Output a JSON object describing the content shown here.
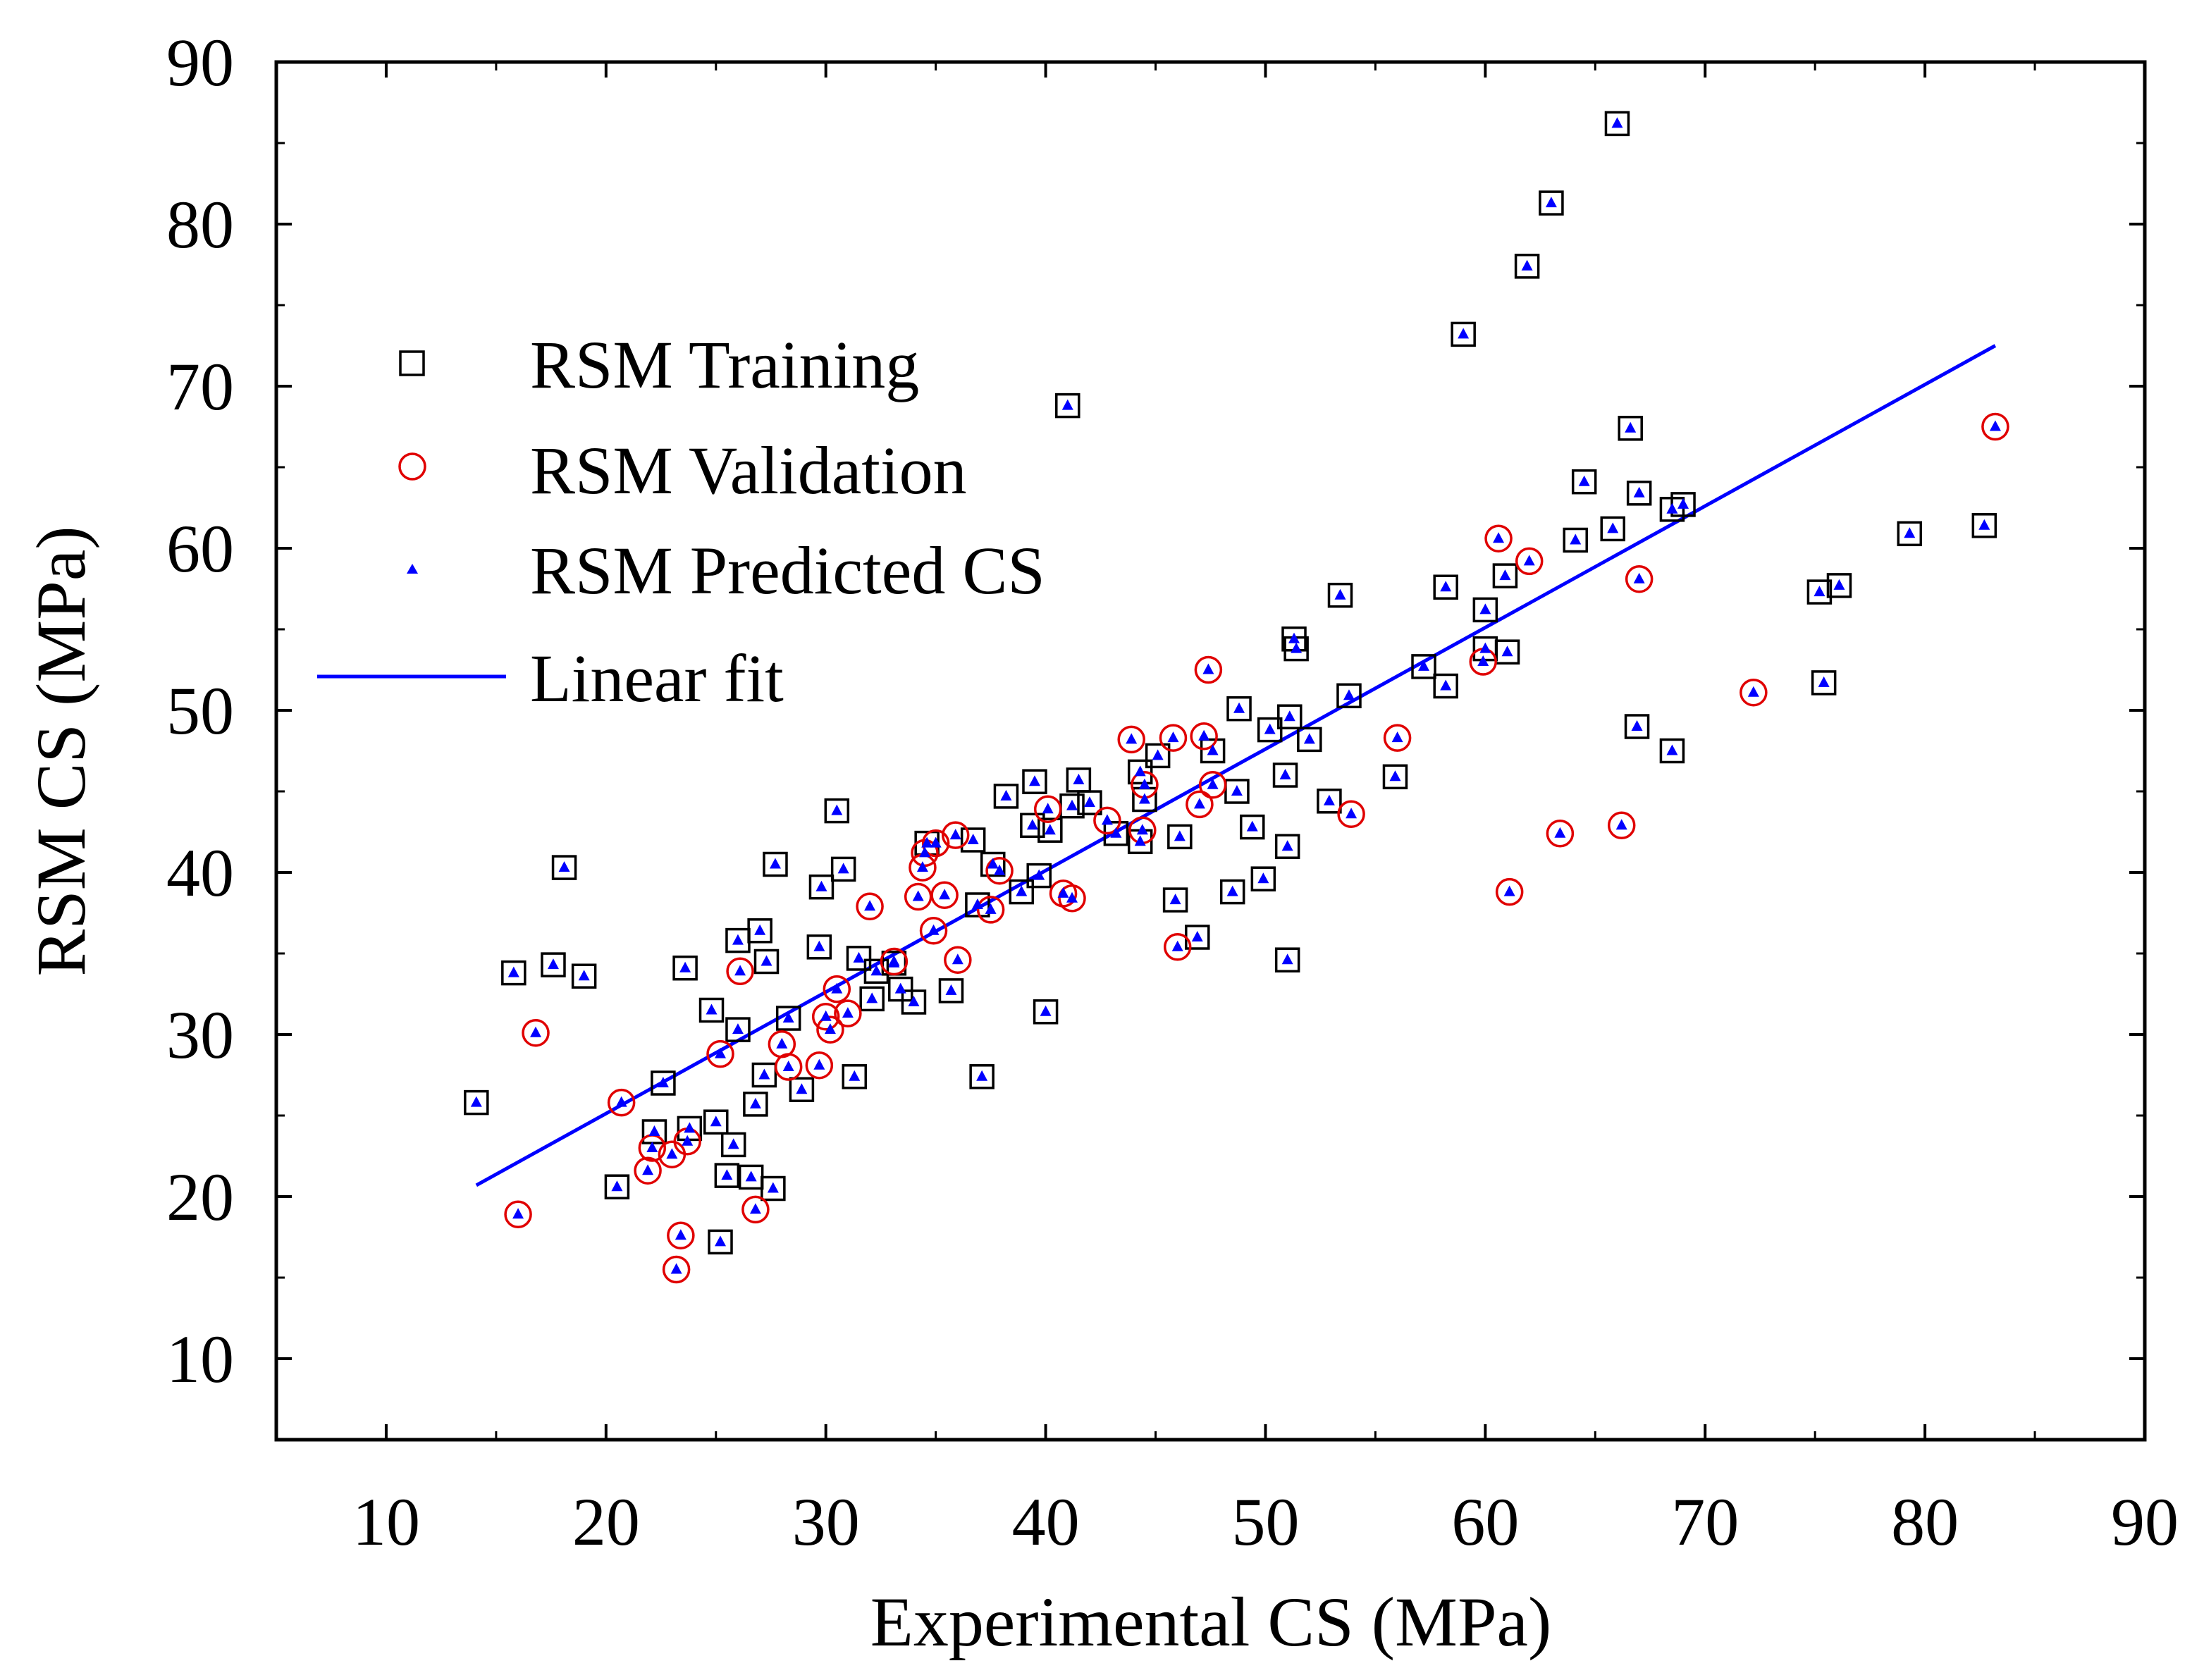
{
  "chart_data": {
    "type": "scatter",
    "xlabel": "Experimental CS (MPa)",
    "ylabel": "RSM CS (MPa)",
    "xlim": [
      5,
      90
    ],
    "ylim": [
      5,
      90
    ],
    "x_ticks": [
      "10",
      "20",
      "30",
      "40",
      "50",
      "60",
      "70",
      "80",
      "90"
    ],
    "y_ticks": [
      "10",
      "20",
      "30",
      "40",
      "50",
      "60",
      "70",
      "80",
      "90"
    ],
    "colors": {
      "training": "#000000",
      "validation": "#e00000",
      "predicted": "#0000ff",
      "fit": "#0000ff"
    },
    "legend": {
      "position": "top-left",
      "training": "RSM Training",
      "validation": "RSM Validation",
      "predicted": "RSM Predicted CS",
      "fit": "Linear fit"
    },
    "fit_line": {
      "x": [
        14.1,
        83.2
      ],
      "y": [
        20.7,
        72.5
      ]
    },
    "training": [
      [
        14.1,
        25.8
      ],
      [
        15.8,
        33.8
      ],
      [
        17.6,
        34.3
      ],
      [
        18.1,
        40.3
      ],
      [
        19.0,
        33.6
      ],
      [
        20.5,
        20.6
      ],
      [
        22.6,
        27.0
      ],
      [
        22.2,
        24.0
      ],
      [
        23.6,
        34.1
      ],
      [
        23.8,
        24.2
      ],
      [
        24.8,
        31.5
      ],
      [
        25.0,
        24.6
      ],
      [
        25.2,
        17.2
      ],
      [
        25.5,
        21.3
      ],
      [
        25.8,
        23.2
      ],
      [
        26.0,
        35.8
      ],
      [
        26.0,
        30.3
      ],
      [
        26.6,
        21.2
      ],
      [
        26.8,
        25.7
      ],
      [
        27.0,
        36.4
      ],
      [
        27.2,
        27.5
      ],
      [
        27.3,
        34.5
      ],
      [
        27.6,
        20.5
      ],
      [
        27.7,
        40.5
      ],
      [
        28.3,
        31.0
      ],
      [
        28.9,
        26.6
      ],
      [
        29.7,
        35.4
      ],
      [
        29.8,
        39.1
      ],
      [
        30.5,
        43.8
      ],
      [
        30.8,
        40.2
      ],
      [
        31.3,
        27.4
      ],
      [
        31.5,
        34.7
      ],
      [
        32.1,
        32.2
      ],
      [
        32.3,
        33.9
      ],
      [
        33.1,
        34.4
      ],
      [
        33.4,
        32.8
      ],
      [
        34.0,
        32.0
      ],
      [
        34.6,
        41.8
      ],
      [
        35.7,
        32.7
      ],
      [
        36.7,
        42.0
      ],
      [
        36.9,
        38.0
      ],
      [
        37.1,
        27.4
      ],
      [
        37.6,
        40.5
      ],
      [
        38.2,
        44.7
      ],
      [
        38.9,
        38.8
      ],
      [
        39.4,
        42.9
      ],
      [
        39.5,
        45.6
      ],
      [
        39.7,
        39.8
      ],
      [
        40.0,
        31.4
      ],
      [
        40.2,
        42.6
      ],
      [
        41.2,
        44.1
      ],
      [
        41.5,
        45.7
      ],
      [
        42.0,
        44.3
      ],
      [
        43.2,
        42.4
      ],
      [
        44.3,
        46.2
      ],
      [
        44.3,
        41.9
      ],
      [
        45.1,
        47.2
      ],
      [
        45.9,
        38.3
      ],
      [
        46.1,
        42.2
      ],
      [
        46.9,
        36.0
      ],
      [
        47.6,
        47.5
      ],
      [
        48.5,
        38.8
      ],
      [
        48.7,
        45.0
      ],
      [
        48.8,
        50.1
      ],
      [
        49.4,
        42.8
      ],
      [
        49.9,
        39.6
      ],
      [
        50.2,
        48.8
      ],
      [
        50.9,
        46.0
      ],
      [
        51.0,
        34.6
      ],
      [
        51.0,
        41.6
      ],
      [
        51.1,
        49.6
      ],
      [
        51.3,
        54.4
      ],
      [
        51.4,
        53.8
      ],
      [
        52.0,
        48.2
      ],
      [
        52.9,
        44.4
      ],
      [
        53.4,
        57.1
      ],
      [
        53.8,
        50.9
      ],
      [
        55.9,
        45.9
      ],
      [
        57.2,
        52.7
      ],
      [
        58.2,
        57.6
      ],
      [
        58.2,
        51.5
      ],
      [
        59.0,
        73.2
      ],
      [
        60.0,
        56.2
      ],
      [
        60.0,
        53.8
      ],
      [
        60.9,
        58.3
      ],
      [
        61.0,
        53.6
      ],
      [
        61.9,
        77.4
      ],
      [
        63.0,
        81.3
      ],
      [
        64.1,
        60.5
      ],
      [
        64.5,
        64.1
      ],
      [
        65.8,
        61.2
      ],
      [
        66.0,
        86.2
      ],
      [
        66.6,
        67.4
      ],
      [
        66.9,
        49.0
      ],
      [
        67.0,
        63.4
      ],
      [
        68.5,
        62.4
      ],
      [
        68.5,
        47.5
      ],
      [
        69.0,
        62.7
      ],
      [
        75.2,
        57.3
      ],
      [
        75.4,
        51.7
      ],
      [
        76.1,
        57.7
      ],
      [
        79.3,
        60.9
      ],
      [
        82.7,
        61.4
      ],
      [
        41.0,
        68.8
      ],
      [
        44.5,
        44.5
      ]
    ],
    "validation": [
      [
        16.0,
        18.9
      ],
      [
        16.8,
        30.1
      ],
      [
        20.7,
        25.8
      ],
      [
        21.9,
        21.6
      ],
      [
        22.1,
        23.0
      ],
      [
        23.0,
        22.6
      ],
      [
        23.2,
        15.5
      ],
      [
        23.4,
        17.6
      ],
      [
        23.7,
        23.4
      ],
      [
        25.2,
        28.8
      ],
      [
        26.1,
        33.9
      ],
      [
        26.8,
        19.2
      ],
      [
        28.0,
        29.4
      ],
      [
        28.3,
        28.0
      ],
      [
        29.7,
        28.1
      ],
      [
        30.0,
        31.1
      ],
      [
        30.2,
        30.3
      ],
      [
        30.5,
        32.8
      ],
      [
        31.0,
        31.3
      ],
      [
        32.0,
        37.9
      ],
      [
        33.1,
        34.5
      ],
      [
        34.2,
        38.5
      ],
      [
        34.4,
        40.3
      ],
      [
        34.5,
        41.2
      ],
      [
        34.9,
        36.4
      ],
      [
        35.0,
        41.8
      ],
      [
        35.4,
        38.6
      ],
      [
        35.9,
        42.3
      ],
      [
        36.0,
        34.6
      ],
      [
        37.5,
        37.7
      ],
      [
        37.9,
        40.1
      ],
      [
        40.1,
        43.9
      ],
      [
        40.8,
        38.7
      ],
      [
        41.2,
        38.4
      ],
      [
        42.8,
        43.2
      ],
      [
        43.9,
        48.2
      ],
      [
        44.4,
        42.6
      ],
      [
        44.5,
        45.4
      ],
      [
        45.8,
        48.3
      ],
      [
        46.0,
        35.4
      ],
      [
        47.0,
        44.2
      ],
      [
        47.2,
        48.4
      ],
      [
        47.4,
        52.5
      ],
      [
        47.6,
        45.4
      ],
      [
        53.9,
        43.6
      ],
      [
        56.0,
        48.3
      ],
      [
        59.9,
        53.0
      ],
      [
        60.6,
        60.6
      ],
      [
        61.1,
        38.8
      ],
      [
        62.0,
        59.2
      ],
      [
        63.4,
        42.4
      ],
      [
        66.2,
        42.9
      ],
      [
        67.0,
        58.1
      ],
      [
        72.2,
        51.1
      ],
      [
        83.2,
        67.5
      ]
    ]
  }
}
